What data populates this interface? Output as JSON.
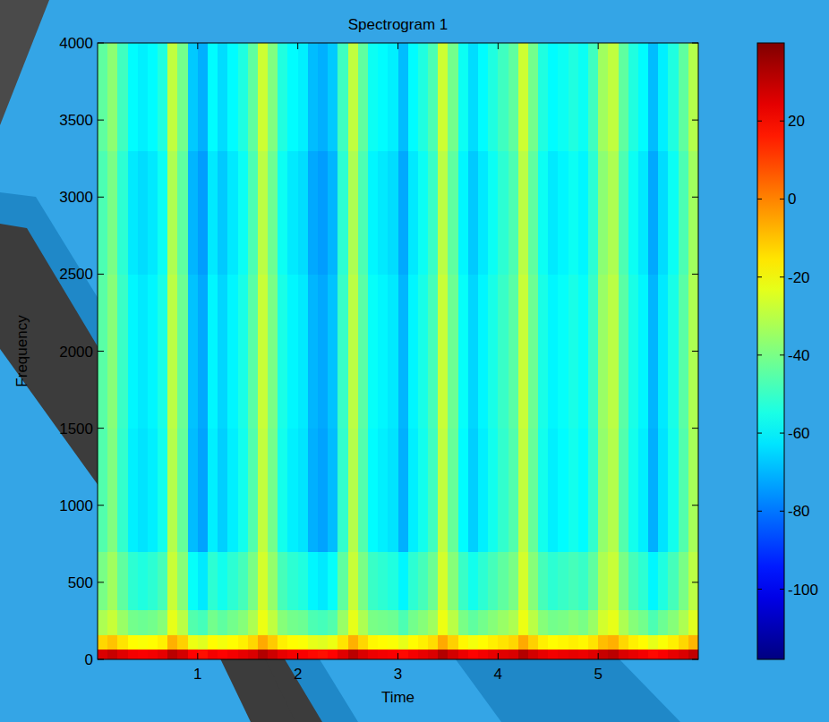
{
  "chart_data": {
    "type": "heatmap",
    "title": "Spectrogram 1",
    "x_label": "Time",
    "y_label": "Frequency",
    "color": "jet",
    "xlim": [
      0,
      6
    ],
    "ylim": [
      0,
      4000
    ],
    "xticks": [
      1,
      2,
      3,
      4,
      5
    ],
    "yticks": [
      0,
      500,
      1000,
      1500,
      2000,
      2500,
      3000,
      3500,
      4000
    ],
    "color_range": [
      -118,
      40
    ],
    "color_ticks": [
      -100,
      -80,
      -60,
      -40,
      -20,
      0,
      20
    ],
    "x_bins": [
      0,
      0.1,
      0.2,
      0.3,
      0.4,
      0.5,
      0.6,
      0.7,
      0.8,
      0.9,
      1,
      1.1,
      1.2,
      1.3,
      1.4,
      1.5,
      1.6,
      1.7,
      1.8,
      1.9,
      2,
      2.1,
      2.2,
      2.3,
      2.4,
      2.5,
      2.6,
      2.7,
      2.8,
      2.9,
      3,
      3.1,
      3.2,
      3.3,
      3.4,
      3.5,
      3.6,
      3.7,
      3.8,
      3.9,
      4,
      4.1,
      4.2,
      4.3,
      4.4,
      4.5,
      4.6,
      4.7,
      4.8,
      4.9,
      5,
      5.1,
      5.2,
      5.3,
      5.4,
      5.5,
      5.6,
      5.7,
      5.8,
      5.9,
      6
    ],
    "y_bins": [
      0,
      70,
      160,
      320,
      700,
      1500,
      2500,
      3300,
      4000
    ],
    "cells": [
      [
        26,
        29,
        25,
        22,
        21,
        22,
        24,
        31,
        27,
        20,
        18,
        22,
        20,
        22,
        24,
        26,
        32,
        28,
        24,
        22,
        21,
        19,
        18,
        20,
        25,
        31,
        26,
        23,
        22,
        21,
        19,
        22,
        24,
        26,
        32,
        27,
        23,
        20,
        22,
        24,
        25,
        26,
        32,
        27,
        24,
        22,
        23,
        24,
        23,
        25,
        29,
        31,
        26,
        24,
        22,
        19,
        21,
        24,
        26,
        30
      ],
      [
        -13,
        -10,
        -15,
        -19,
        -20,
        -19,
        -17,
        -7,
        -12,
        -22,
        -24,
        -19,
        -21,
        -19,
        -17,
        -13,
        -6,
        -11,
        -17,
        -19,
        -20,
        -23,
        -24,
        -22,
        -15,
        -7,
        -13,
        -18,
        -19,
        -20,
        -23,
        -19,
        -17,
        -14,
        -6,
        -12,
        -18,
        -21,
        -19,
        -17,
        -15,
        -13,
        -6,
        -12,
        -17,
        -19,
        -18,
        -17,
        -18,
        -15,
        -9,
        -7,
        -13,
        -17,
        -19,
        -23,
        -20,
        -17,
        -13,
        -8
      ],
      [
        -32,
        -28,
        -35,
        -41,
        -42,
        -41,
        -38,
        -23,
        -30,
        -46,
        -48,
        -41,
        -44,
        -41,
        -38,
        -32,
        -22,
        -29,
        -38,
        -41,
        -42,
        -47,
        -48,
        -46,
        -35,
        -23,
        -32,
        -40,
        -41,
        -42,
        -47,
        -41,
        -38,
        -34,
        -22,
        -30,
        -40,
        -44,
        -41,
        -38,
        -35,
        -32,
        -22,
        -30,
        -38,
        -41,
        -40,
        -38,
        -40,
        -35,
        -26,
        -23,
        -32,
        -38,
        -41,
        -47,
        -42,
        -38,
        -32,
        -24
      ],
      [
        -40,
        -34,
        -44,
        -52,
        -54,
        -52,
        -48,
        -28,
        -38,
        -58,
        -62,
        -52,
        -56,
        -52,
        -48,
        -40,
        -26,
        -36,
        -48,
        -52,
        -54,
        -60,
        -62,
        -58,
        -44,
        -28,
        -40,
        -50,
        -52,
        -54,
        -60,
        -52,
        -48,
        -42,
        -26,
        -38,
        -50,
        -56,
        -52,
        -48,
        -44,
        -40,
        -26,
        -38,
        -48,
        -52,
        -50,
        -48,
        -50,
        -44,
        -32,
        -28,
        -40,
        -48,
        -52,
        -60,
        -54,
        -48,
        -40,
        -30
      ],
      [
        -46,
        -39,
        -51,
        -61,
        -63,
        -61,
        -56,
        -31,
        -43,
        -69,
        -73,
        -61,
        -66,
        -61,
        -56,
        -46,
        -29,
        -41,
        -56,
        -61,
        -63,
        -71,
        -73,
        -69,
        -51,
        -31,
        -46,
        -59,
        -61,
        -63,
        -71,
        -61,
        -56,
        -49,
        -29,
        -43,
        -59,
        -66,
        -61,
        -56,
        -51,
        -46,
        -29,
        -43,
        -56,
        -61,
        -59,
        -56,
        -59,
        -51,
        -36,
        -31,
        -46,
        -56,
        -61,
        -71,
        -63,
        -56,
        -46,
        -33
      ],
      [
        -45,
        -38,
        -50,
        -60,
        -62,
        -60,
        -55,
        -30,
        -42,
        -68,
        -72,
        -60,
        -65,
        -60,
        -55,
        -45,
        -28,
        -40,
        -55,
        -60,
        -62,
        -70,
        -72,
        -68,
        -50,
        -30,
        -45,
        -58,
        -60,
        -62,
        -70,
        -60,
        -55,
        -48,
        -28,
        -42,
        -58,
        -65,
        -60,
        -55,
        -50,
        -45,
        -28,
        -42,
        -55,
        -60,
        -58,
        -55,
        -58,
        -50,
        -35,
        -30,
        -45,
        -55,
        -60,
        -70,
        -62,
        -55,
        -45,
        -32
      ],
      [
        -47,
        -40,
        -52,
        -62,
        -64,
        -62,
        -57,
        -32,
        -44,
        -70,
        -74,
        -62,
        -67,
        -62,
        -57,
        -47,
        -30,
        -42,
        -57,
        -62,
        -64,
        -72,
        -74,
        -70,
        -52,
        -32,
        -47,
        -60,
        -62,
        -64,
        -72,
        -62,
        -57,
        -50,
        -30,
        -44,
        -60,
        -67,
        -62,
        -57,
        -52,
        -47,
        -30,
        -44,
        -57,
        -62,
        -60,
        -57,
        -60,
        -52,
        -37,
        -32,
        -47,
        -57,
        -62,
        -72,
        -64,
        -57,
        -47,
        -34
      ],
      [
        -44,
        -37,
        -49,
        -59,
        -61,
        -59,
        -54,
        -29,
        -41,
        -67,
        -71,
        -59,
        -64,
        -59,
        -54,
        -44,
        -27,
        -39,
        -54,
        -59,
        -61,
        -69,
        -71,
        -67,
        -49,
        -29,
        -44,
        -57,
        -59,
        -61,
        -69,
        -59,
        -54,
        -47,
        -27,
        -41,
        -57,
        -64,
        -59,
        -54,
        -49,
        -44,
        -27,
        -41,
        -54,
        -59,
        -57,
        -54,
        -57,
        -49,
        -34,
        -29,
        -44,
        -54,
        -59,
        -69,
        -61,
        -54,
        -44,
        -31
      ]
    ]
  }
}
